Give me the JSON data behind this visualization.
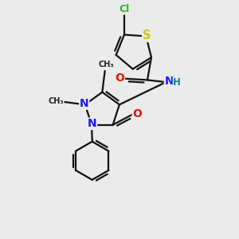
{
  "bg_color": "#ebebeb",
  "bond_color": "#111111",
  "bond_lw": 1.6,
  "dbo": 0.1,
  "atom_colors": {
    "N": "#1a1aff",
    "O": "#ee1100",
    "S": "#cccc00",
    "Cl": "#22bb22",
    "H": "#008888"
  },
  "fs": 9.0,
  "fss": 7.0,
  "xlim": [
    1.0,
    9.0
  ],
  "ylim": [
    0.5,
    9.5
  ]
}
